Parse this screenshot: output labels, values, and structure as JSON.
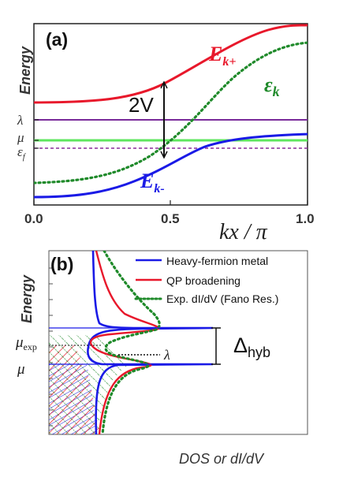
{
  "colors": {
    "ek_plus": "#e8182b",
    "ek_minus": "#1a1ae6",
    "eps_k": "#1f8a2a",
    "lambda_line": "#7a2a9a",
    "mu_line": "#5ee65e",
    "epsf_line": "#8a2a9a",
    "vline": "#111111",
    "hatch_red": "#e8182b",
    "hatch_green": "#1f8a2a",
    "hatch_blue": "#1a1ae6",
    "axis": "#222222",
    "label_gray": "#333333"
  },
  "chart_data": [
    {
      "type": "line",
      "panel_label": "(a)",
      "ylabel": "Energy",
      "xlabel": "kx / π",
      "xlim": [
        0.0,
        1.0
      ],
      "x_ticks": [
        "0.0",
        "0.5",
        "1.0"
      ],
      "y_ticks": [
        "λ",
        "μ",
        "ε_f"
      ],
      "annotations": [
        "2V"
      ],
      "series": [
        {
          "name": "E_k+",
          "style": "solid",
          "x": [
            0.0,
            0.25,
            0.5,
            0.75,
            1.0
          ],
          "values": [
            0.22,
            0.3,
            0.55,
            0.85,
            0.96
          ]
        },
        {
          "name": "ε_k",
          "style": "dotted",
          "x": [
            0.0,
            0.25,
            0.5,
            0.75,
            1.0
          ],
          "values": [
            -0.98,
            -0.7,
            0.0,
            0.7,
            0.92
          ]
        },
        {
          "name": "E_k-",
          "style": "solid",
          "x": [
            0.0,
            0.25,
            0.5,
            0.75,
            1.0
          ],
          "values": [
            -1.12,
            -1.0,
            -0.62,
            -0.34,
            -0.28
          ]
        },
        {
          "name": "λ",
          "style": "flat",
          "x": [
            0.0,
            1.0
          ],
          "values": [
            -0.05,
            -0.05
          ]
        },
        {
          "name": "μ",
          "style": "flat",
          "x": [
            0.0,
            1.0
          ],
          "values": [
            -0.28,
            -0.28
          ]
        },
        {
          "name": "ε_f",
          "style": "dotted-flat",
          "x": [
            0.0,
            1.0
          ],
          "values": [
            -0.42,
            -0.42
          ]
        }
      ],
      "grid": false
    },
    {
      "type": "line",
      "panel_label": "(b)",
      "ylabel": "Energy",
      "xlabel": "DOS or dI/dV",
      "y_ticks": [
        "μ_exp",
        "μ"
      ],
      "legend": [
        "Heavy-fermion metal",
        "QP broadening",
        "Exp. dI/dV (Fano Res.)"
      ],
      "annotations": [
        "λ",
        "Δ_hyb"
      ],
      "legend_position": "top-right",
      "grid": false
    }
  ],
  "labels": {
    "a_panel": "(a)",
    "a_energy": "Energy",
    "a_ekplus_main": "E",
    "a_ekplus_sub": "k+",
    "a_epsk_main": "ε",
    "a_epsk_sub": "k",
    "a_ekminus_main": "E",
    "a_ekminus_sub": "k-",
    "a_2v": "2V",
    "a_lambda": "λ",
    "a_mu": "μ",
    "a_epsf_main": "ε",
    "a_epsf_sub": "f",
    "a_tick0": "0.0",
    "a_tick05": "0.5",
    "a_tick1": "1.0",
    "a_xlabel": "kx / π",
    "b_panel": "(b)",
    "b_energy": "Energy",
    "b_leg1": "Heavy-fermion metal",
    "b_leg2": "QP broadening",
    "b_leg3": "Exp. dI/dV (Fano Res.)",
    "b_muexp_main": "μ",
    "b_muexp_sub": "exp",
    "b_mu": "μ",
    "b_lambda": "λ",
    "b_delta_main": "Δ",
    "b_delta_sub": "hyb",
    "b_xlabel": "DOS or dI/dV"
  }
}
